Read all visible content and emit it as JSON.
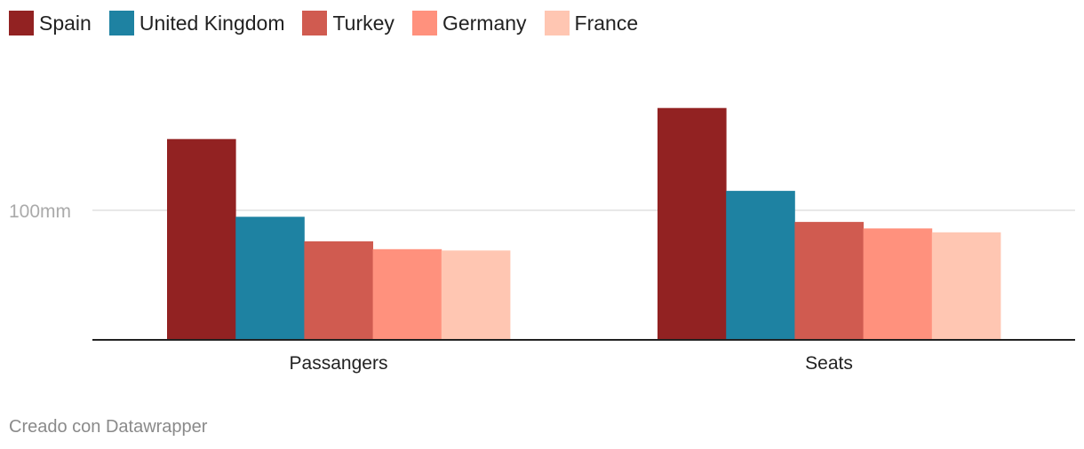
{
  "chart_data": {
    "type": "bar",
    "categories": [
      "Passangers",
      "Seats"
    ],
    "series": [
      {
        "name": "Spain",
        "color": "#922222",
        "values": [
          155,
          179
        ]
      },
      {
        "name": "United Kingdom",
        "color": "#1e82a2",
        "values": [
          95,
          115
        ]
      },
      {
        "name": "Turkey",
        "color": "#d05b50",
        "values": [
          76,
          91
        ]
      },
      {
        "name": "Germany",
        "color": "#ff917d",
        "values": [
          70,
          86
        ]
      },
      {
        "name": "France",
        "color": "#ffc6b2",
        "values": [
          69,
          83
        ]
      }
    ],
    "y_ticks": [
      {
        "value": 100,
        "label": "100mm"
      }
    ],
    "ylim": [
      0,
      200
    ],
    "grid": true,
    "legend_position": "top-left"
  },
  "footer": {
    "credit": "Creado con Datawrapper"
  }
}
